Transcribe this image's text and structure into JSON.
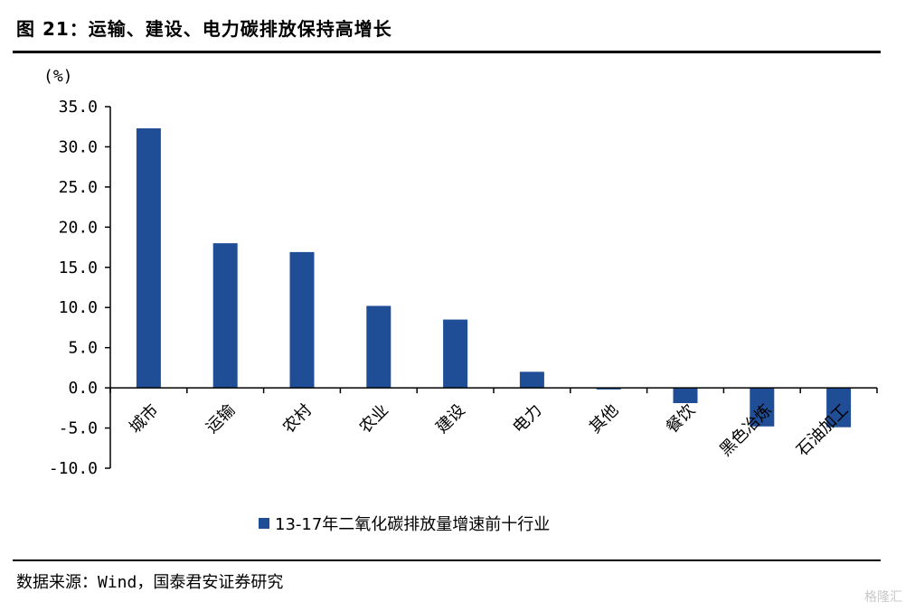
{
  "header": {
    "title": "图 21：运输、建设、电力碳排放保持高增长"
  },
  "footer": {
    "source": "数据来源：Wind，国泰君安证券研究",
    "watermark": "格隆汇"
  },
  "chart_data": {
    "type": "bar",
    "title": "",
    "ylabel": "(%)",
    "xlabel": "",
    "ylim": [
      -10,
      35
    ],
    "yticks": [
      "35.0",
      "30.0",
      "25.0",
      "20.0",
      "15.0",
      "10.0",
      "5.0",
      "0.0",
      "-5.0",
      "-10.0"
    ],
    "categories": [
      "城市",
      "运输",
      "农村",
      "农业",
      "建设",
      "电力",
      "其他",
      "餐饮",
      "黑色冶炼",
      "石油加工"
    ],
    "series": [
      {
        "name": "13-17年二氧化碳排放量增速前十行业",
        "color": "#1f4e96",
        "values": [
          32.3,
          18.0,
          16.9,
          10.2,
          8.5,
          2.0,
          -0.2,
          -1.9,
          -4.8,
          -4.9
        ]
      }
    ],
    "legend": "bottom-center",
    "grid": false
  }
}
